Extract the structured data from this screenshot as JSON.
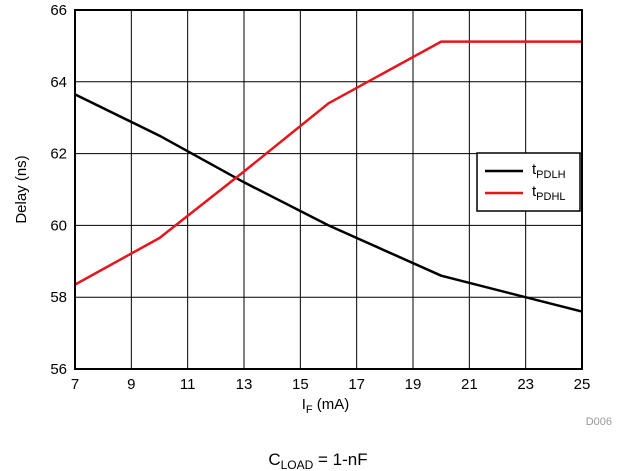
{
  "chart_data": {
    "type": "line",
    "x_axis": {
      "label_main": "I",
      "label_sub": "F",
      "label_unit": " (mA)",
      "range": [
        7,
        25
      ],
      "ticks": [
        7,
        9,
        11,
        13,
        15,
        17,
        19,
        21,
        23,
        25
      ]
    },
    "y_axis": {
      "label": "Delay (ns)",
      "range": [
        56,
        66
      ],
      "ticks": [
        56,
        58,
        60,
        62,
        64,
        66
      ]
    },
    "grid": true,
    "legend_position": "right-middle",
    "series": [
      {
        "name_main": "t",
        "name_sub": "PDLH",
        "color": "#000000",
        "points": [
          [
            7,
            63.65
          ],
          [
            10,
            62.5
          ],
          [
            13,
            61.2
          ],
          [
            16,
            60.0
          ],
          [
            20,
            58.6
          ],
          [
            25,
            57.6
          ]
        ]
      },
      {
        "name_main": "t",
        "name_sub": "PDHL",
        "color": "#e8141c",
        "points": [
          [
            7,
            58.35
          ],
          [
            10,
            59.65
          ],
          [
            13,
            61.5
          ],
          [
            16,
            63.4
          ],
          [
            20,
            65.12
          ],
          [
            25,
            65.12
          ]
        ]
      }
    ],
    "figure_id": "D006",
    "caption_main": "C",
    "caption_sub": "LOAD",
    "caption_rest": " = 1-nF"
  }
}
